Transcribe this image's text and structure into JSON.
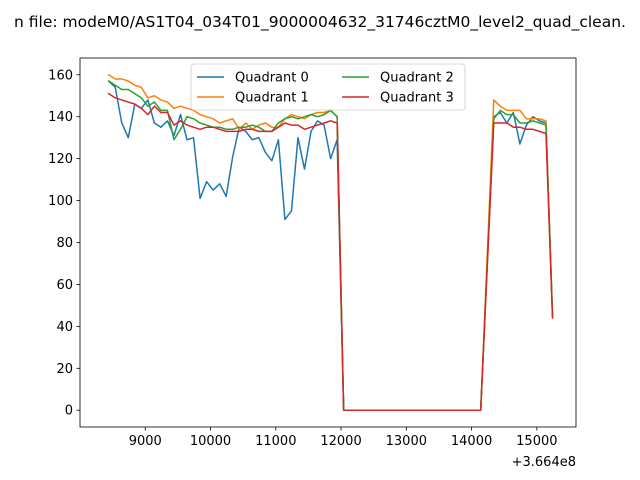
{
  "chart_data": {
    "type": "line",
    "title": "n file: modeM0/AS1T04_034T01_9000004632_31746cztM0_level2_quad_clean.",
    "xlabel": "",
    "ylabel": "",
    "offset_label": "+3.664e8",
    "xlim": [
      8000,
      15600
    ],
    "ylim": [
      -8,
      168
    ],
    "x_ticks": [
      9000,
      10000,
      11000,
      12000,
      13000,
      14000,
      15000
    ],
    "x_tick_labels": [
      "9000",
      "10000",
      "11000",
      "12000",
      "13000",
      "14000",
      "15000"
    ],
    "y_ticks": [
      0,
      20,
      40,
      60,
      80,
      100,
      120,
      140,
      160
    ],
    "y_tick_labels": [
      "0",
      "20",
      "40",
      "60",
      "80",
      "100",
      "120",
      "140",
      "160"
    ],
    "grid": false,
    "legend": {
      "placement": "upper-center",
      "columns": 2
    },
    "series": [
      {
        "name": "Quadrant 0",
        "color": "#1f77b4",
        "x": [
          8440,
          8540,
          8640,
          8740,
          8840,
          8940,
          9040,
          9140,
          9240,
          9340,
          9440,
          9540,
          9640,
          9740,
          9840,
          9940,
          10040,
          10140,
          10240,
          10340,
          10440,
          10540,
          10640,
          10740,
          10840,
          10940,
          11040,
          11140,
          11240,
          11340,
          11440,
          11540,
          11640,
          11740,
          11840,
          11940,
          12040,
          12140,
          12240,
          12340,
          12440,
          12540,
          12640,
          12740,
          12840,
          12940,
          13040,
          13140,
          13240,
          13340,
          13440,
          13540,
          13640,
          13740,
          13840,
          13940,
          14040,
          14140,
          14340,
          14440,
          14540,
          14640,
          14740,
          14840,
          14940,
          15040,
          15140,
          15240
        ],
        "y": [
          157,
          154,
          137,
          130,
          146,
          144,
          148,
          137,
          135,
          138,
          131,
          141,
          129,
          130,
          101,
          109,
          105,
          108,
          102,
          121,
          135,
          133,
          129,
          130,
          123,
          119,
          129,
          91,
          95,
          130,
          115,
          133,
          138,
          136,
          120,
          129,
          0,
          0,
          0,
          0,
          0,
          0,
          0,
          0,
          0,
          0,
          0,
          0,
          0,
          0,
          0,
          0,
          0,
          0,
          0,
          0,
          0,
          0,
          140,
          142,
          137,
          142,
          127,
          136,
          140,
          138,
          137,
          45
        ]
      },
      {
        "name": "Quadrant 1",
        "color": "#ff7f0e",
        "x": [
          8440,
          8540,
          8640,
          8740,
          8840,
          8940,
          9040,
          9140,
          9240,
          9340,
          9440,
          9540,
          9640,
          9740,
          9840,
          9940,
          10040,
          10140,
          10240,
          10340,
          10440,
          10540,
          10640,
          10740,
          10840,
          10940,
          11040,
          11140,
          11240,
          11340,
          11440,
          11540,
          11640,
          11740,
          11840,
          11940,
          12040,
          12140,
          12240,
          12340,
          12440,
          12540,
          12640,
          12740,
          12840,
          12940,
          13040,
          13140,
          13240,
          13340,
          13440,
          13540,
          13640,
          13740,
          13840,
          13940,
          14040,
          14140,
          14340,
          14440,
          14540,
          14640,
          14740,
          14840,
          14940,
          15040,
          15140,
          15240
        ],
        "y": [
          160,
          158,
          158,
          157,
          155,
          154,
          149,
          150,
          148,
          147,
          144,
          145,
          144,
          143,
          141,
          140,
          139,
          137,
          138,
          139,
          134,
          137,
          134,
          136,
          137,
          135,
          135,
          139,
          141,
          140,
          139,
          141,
          142,
          142,
          143,
          140,
          0,
          0,
          0,
          0,
          0,
          0,
          0,
          0,
          0,
          0,
          0,
          0,
          0,
          0,
          0,
          0,
          0,
          0,
          0,
          0,
          0,
          0,
          148,
          145,
          143,
          143,
          143,
          139,
          139,
          139,
          138,
          45
        ]
      },
      {
        "name": "Quadrant 2",
        "color": "#2ca02c",
        "x": [
          8440,
          8540,
          8640,
          8740,
          8840,
          8940,
          9040,
          9140,
          9240,
          9340,
          9440,
          9540,
          9640,
          9740,
          9840,
          9940,
          10040,
          10140,
          10240,
          10340,
          10440,
          10540,
          10640,
          10740,
          10840,
          10940,
          11040,
          11140,
          11240,
          11340,
          11440,
          11540,
          11640,
          11740,
          11840,
          11940,
          12040,
          12140,
          12240,
          12340,
          12440,
          12540,
          12640,
          12740,
          12840,
          12940,
          13040,
          13140,
          13240,
          13340,
          13440,
          13540,
          13640,
          13740,
          13840,
          13940,
          14040,
          14140,
          14340,
          14440,
          14540,
          14640,
          14740,
          14840,
          14940,
          15040,
          15140,
          15240
        ],
        "y": [
          157,
          155,
          153,
          153,
          151,
          149,
          145,
          147,
          143,
          143,
          129,
          134,
          140,
          139,
          137,
          136,
          135,
          135,
          134,
          134,
          135,
          135,
          136,
          135,
          133,
          133,
          137,
          139,
          140,
          139,
          140,
          141,
          140,
          141,
          143,
          140,
          0,
          0,
          0,
          0,
          0,
          0,
          0,
          0,
          0,
          0,
          0,
          0,
          0,
          0,
          0,
          0,
          0,
          0,
          0,
          0,
          0,
          0,
          139,
          143,
          141,
          141,
          137,
          137,
          138,
          137,
          136,
          45
        ]
      },
      {
        "name": "Quadrant 3",
        "color": "#d62728",
        "x": [
          8440,
          8540,
          8640,
          8740,
          8840,
          8940,
          9040,
          9140,
          9240,
          9340,
          9440,
          9540,
          9640,
          9740,
          9840,
          9940,
          10040,
          10140,
          10240,
          10340,
          10440,
          10540,
          10640,
          10740,
          10840,
          10940,
          11040,
          11140,
          11240,
          11340,
          11440,
          11540,
          11640,
          11740,
          11840,
          11940,
          12040,
          12140,
          12240,
          12340,
          12440,
          12540,
          12640,
          12740,
          12840,
          12940,
          13040,
          13140,
          13240,
          13340,
          13440,
          13540,
          13640,
          13740,
          13840,
          13940,
          14040,
          14140,
          14340,
          14440,
          14540,
          14640,
          14740,
          14840,
          14940,
          15040,
          15140,
          15240
        ],
        "y": [
          151,
          149,
          148,
          147,
          146,
          144,
          141,
          145,
          142,
          142,
          136,
          138,
          136,
          135,
          134,
          135,
          135,
          134,
          133,
          133,
          133,
          134,
          134,
          133,
          133,
          133,
          135,
          137,
          136,
          136,
          134,
          135,
          136,
          137,
          138,
          137,
          0,
          0,
          0,
          0,
          0,
          0,
          0,
          0,
          0,
          0,
          0,
          0,
          0,
          0,
          0,
          0,
          0,
          0,
          0,
          0,
          0,
          0,
          137,
          137,
          137,
          135,
          135,
          134,
          134,
          133,
          132,
          44
        ]
      }
    ]
  }
}
